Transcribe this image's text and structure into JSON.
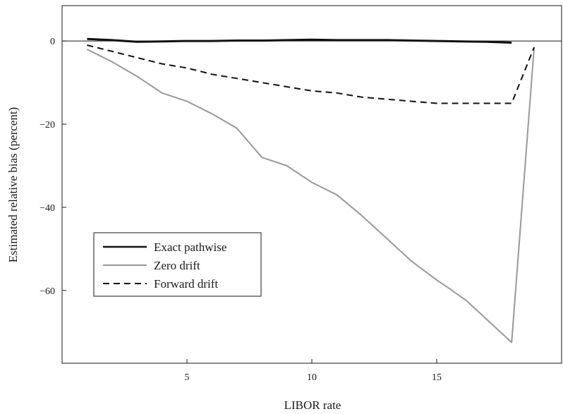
{
  "chart_data": {
    "type": "line",
    "xlabel": "LIBOR rate",
    "ylabel": "Estimated relative bias (percent)",
    "xlim": [
      0,
      20
    ],
    "ylim": [
      -77.5,
      8.5
    ],
    "xticks": [
      5,
      10,
      15
    ],
    "yticks": [
      0,
      -20,
      -40,
      -60
    ],
    "xtick_labels": [
      "5",
      "10",
      "15"
    ],
    "ytick_labels": [
      "0",
      "−20",
      "−40",
      "−60"
    ],
    "reference_line_y": 0,
    "grid": false,
    "legend": {
      "position": "middle-left"
    },
    "series": [
      {
        "name": "Exact pathwise",
        "color": "#111111",
        "dash": "solid",
        "x": [
          1,
          2,
          3,
          4,
          5,
          6,
          7,
          8,
          9,
          10,
          11,
          12,
          13,
          14,
          15,
          16,
          17,
          18
        ],
        "y": [
          0.5,
          0.2,
          -0.2,
          -0.1,
          0.0,
          0.0,
          0.1,
          0.1,
          0.2,
          0.3,
          0.2,
          0.2,
          0.2,
          0.1,
          0.0,
          -0.1,
          -0.2,
          -0.4
        ]
      },
      {
        "name": "Zero drift",
        "color": "#999999",
        "dash": "solid",
        "x": [
          1,
          2,
          3,
          4,
          5,
          6,
          7,
          7.5,
          8,
          9,
          10,
          11,
          12,
          13,
          14,
          15,
          15.5,
          16.2,
          18,
          18.9
        ],
        "y": [
          -2,
          -5,
          -8.5,
          -12.5,
          -14.5,
          -17.5,
          -21,
          -24.5,
          -28,
          -30,
          -34,
          -37,
          -42,
          -47.5,
          -53,
          -57.5,
          -59.5,
          -62.5,
          -72.5,
          -1.5
        ]
      },
      {
        "name": "Forward drift",
        "color": "#111111",
        "dash": "dashed",
        "x": [
          1,
          2,
          3,
          4,
          5,
          6,
          7,
          8,
          9,
          10,
          11,
          12,
          13,
          14,
          15,
          16,
          17,
          18,
          18.9
        ],
        "y": [
          -1,
          -2.5,
          -4,
          -5.5,
          -6.5,
          -8,
          -9,
          -10,
          -11,
          -12,
          -12.5,
          -13.5,
          -14,
          -14.5,
          -15,
          -15,
          -15,
          -15,
          -1.5
        ]
      }
    ]
  }
}
